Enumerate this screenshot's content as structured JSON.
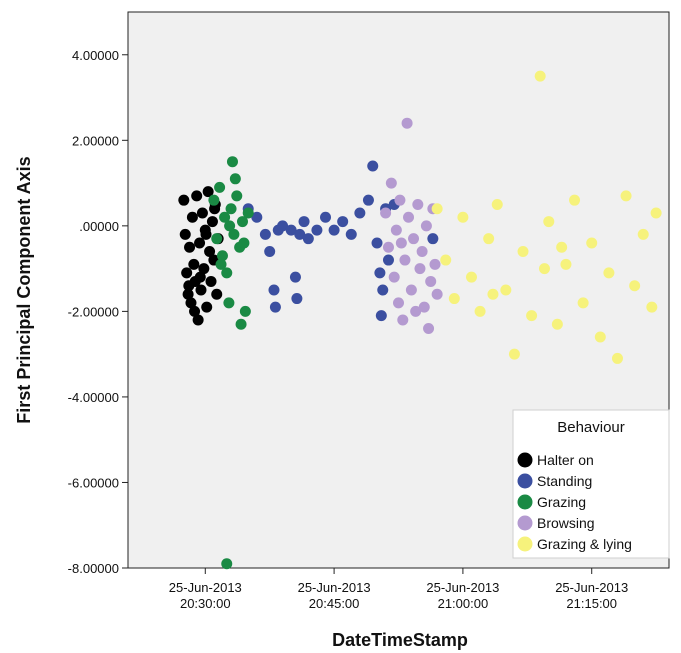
{
  "chart_data": {
    "type": "scatter",
    "xlabel": "DateTimeStamp",
    "ylabel": "First Principal Component Axis",
    "ylim": [
      -8.0,
      5.0
    ],
    "xlim": [
      "2013-06-25 20:21:00",
      "2013-06-25 21:24:00"
    ],
    "grid": false,
    "legend_position": "bottom-right",
    "legend_title": "Behaviour",
    "y_ticks": [
      {
        "value": 4,
        "label": "4.00000"
      },
      {
        "value": 2,
        "label": "2.00000"
      },
      {
        "value": 0,
        "label": ".00000"
      },
      {
        "value": -2,
        "label": "-2.00000"
      },
      {
        "value": -4,
        "label": "-4.00000"
      },
      {
        "value": -6,
        "label": "-6.00000"
      },
      {
        "value": -8,
        "label": "-8.00000"
      }
    ],
    "x_ticks": [
      {
        "value": "2013-06-25 20:30:00",
        "date": "25-Jun-2013",
        "time": "20:30:00"
      },
      {
        "value": "2013-06-25 20:45:00",
        "date": "25-Jun-2013",
        "time": "20:45:00"
      },
      {
        "value": "2013-06-25 21:00:00",
        "date": "25-Jun-2013",
        "time": "21:00:00"
      },
      {
        "value": "2013-06-25 21:15:00",
        "date": "25-Jun-2013",
        "time": "21:15:00"
      }
    ],
    "series": [
      {
        "name": "Halter on",
        "color": "#000000",
        "points": [
          [
            "2013-06-25 20:27:30",
            0.6
          ],
          [
            "2013-06-25 20:27:40",
            -0.2
          ],
          [
            "2013-06-25 20:27:50",
            -1.1
          ],
          [
            "2013-06-25 20:28:00",
            -1.6
          ],
          [
            "2013-06-25 20:28:10",
            -0.5
          ],
          [
            "2013-06-25 20:28:20",
            -1.8
          ],
          [
            "2013-06-25 20:28:30",
            0.2
          ],
          [
            "2013-06-25 20:28:40",
            -0.9
          ],
          [
            "2013-06-25 20:28:50",
            -1.3
          ],
          [
            "2013-06-25 20:29:00",
            0.7
          ],
          [
            "2013-06-25 20:29:10",
            -2.2
          ],
          [
            "2013-06-25 20:29:20",
            -0.4
          ],
          [
            "2013-06-25 20:29:30",
            -1.5
          ],
          [
            "2013-06-25 20:29:40",
            0.3
          ],
          [
            "2013-06-25 20:29:50",
            -1.0
          ],
          [
            "2013-06-25 20:30:00",
            -0.1
          ],
          [
            "2013-06-25 20:30:10",
            -1.9
          ],
          [
            "2013-06-25 20:30:20",
            0.8
          ],
          [
            "2013-06-25 20:30:30",
            -0.6
          ],
          [
            "2013-06-25 20:30:40",
            -1.3
          ],
          [
            "2013-06-25 20:30:50",
            0.1
          ],
          [
            "2013-06-25 20:31:00",
            -0.8
          ],
          [
            "2013-06-25 20:31:10",
            0.5
          ],
          [
            "2013-06-25 20:31:20",
            -1.6
          ],
          [
            "2013-06-25 20:31:30",
            -0.3
          ],
          [
            "2013-06-25 20:28:05",
            -1.4
          ],
          [
            "2013-06-25 20:28:45",
            -2.0
          ],
          [
            "2013-06-25 20:29:25",
            -1.2
          ],
          [
            "2013-06-25 20:30:05",
            -0.2
          ],
          [
            "2013-06-25 20:31:05",
            0.4
          ]
        ]
      },
      {
        "name": "Standing",
        "color": "#3b4fa0",
        "points": [
          [
            "2013-06-25 20:35:00",
            0.4
          ],
          [
            "2013-06-25 20:36:00",
            0.2
          ],
          [
            "2013-06-25 20:37:00",
            -0.2
          ],
          [
            "2013-06-25 20:37:30",
            -0.6
          ],
          [
            "2013-06-25 20:38:00",
            -1.5
          ],
          [
            "2013-06-25 20:38:10",
            -1.9
          ],
          [
            "2013-06-25 20:38:30",
            -0.1
          ],
          [
            "2013-06-25 20:39:00",
            0.0
          ],
          [
            "2013-06-25 20:40:00",
            -0.1
          ],
          [
            "2013-06-25 20:40:30",
            -1.2
          ],
          [
            "2013-06-25 20:40:40",
            -1.7
          ],
          [
            "2013-06-25 20:41:00",
            -0.2
          ],
          [
            "2013-06-25 20:41:30",
            0.1
          ],
          [
            "2013-06-25 20:42:00",
            -0.3
          ],
          [
            "2013-06-25 20:43:00",
            -0.1
          ],
          [
            "2013-06-25 20:44:00",
            0.2
          ],
          [
            "2013-06-25 20:45:00",
            -0.1
          ],
          [
            "2013-06-25 20:46:00",
            0.1
          ],
          [
            "2013-06-25 20:47:00",
            -0.2
          ],
          [
            "2013-06-25 20:48:00",
            0.3
          ],
          [
            "2013-06-25 20:49:00",
            0.6
          ],
          [
            "2013-06-25 20:49:30",
            1.4
          ],
          [
            "2013-06-25 20:50:00",
            -0.4
          ],
          [
            "2013-06-25 20:50:20",
            -1.1
          ],
          [
            "2013-06-25 20:50:30",
            -2.1
          ],
          [
            "2013-06-25 20:50:40",
            -1.5
          ],
          [
            "2013-06-25 20:51:00",
            0.4
          ],
          [
            "2013-06-25 20:51:20",
            -0.8
          ],
          [
            "2013-06-25 20:52:00",
            0.5
          ],
          [
            "2013-06-25 20:56:30",
            -0.3
          ]
        ]
      },
      {
        "name": "Grazing",
        "color": "#1a8a44",
        "points": [
          [
            "2013-06-25 20:31:00",
            0.6
          ],
          [
            "2013-06-25 20:31:20",
            -0.3
          ],
          [
            "2013-06-25 20:31:40",
            0.9
          ],
          [
            "2013-06-25 20:32:00",
            -0.7
          ],
          [
            "2013-06-25 20:32:15",
            0.2
          ],
          [
            "2013-06-25 20:32:30",
            -1.1
          ],
          [
            "2013-06-25 20:32:45",
            -1.8
          ],
          [
            "2013-06-25 20:33:00",
            0.4
          ],
          [
            "2013-06-25 20:33:10",
            1.5
          ],
          [
            "2013-06-25 20:33:20",
            -0.2
          ],
          [
            "2013-06-25 20:33:40",
            0.7
          ],
          [
            "2013-06-25 20:34:00",
            -0.5
          ],
          [
            "2013-06-25 20:34:10",
            -2.3
          ],
          [
            "2013-06-25 20:34:20",
            0.1
          ],
          [
            "2013-06-25 20:34:40",
            -2.0
          ],
          [
            "2013-06-25 20:35:00",
            0.3
          ],
          [
            "2013-06-25 20:33:30",
            1.1
          ],
          [
            "2013-06-25 20:32:50",
            0.0
          ],
          [
            "2013-06-25 20:31:50",
            -0.9
          ],
          [
            "2013-06-25 20:34:30",
            -0.4
          ],
          [
            "2013-06-25 20:32:30",
            -7.9
          ]
        ]
      },
      {
        "name": "Browsing",
        "color": "#b49ad0",
        "points": [
          [
            "2013-06-25 20:51:00",
            0.3
          ],
          [
            "2013-06-25 20:51:20",
            -0.5
          ],
          [
            "2013-06-25 20:51:40",
            1.0
          ],
          [
            "2013-06-25 20:52:00",
            -1.2
          ],
          [
            "2013-06-25 20:52:15",
            -0.1
          ],
          [
            "2013-06-25 20:52:30",
            -1.8
          ],
          [
            "2013-06-25 20:52:40",
            0.6
          ],
          [
            "2013-06-25 20:53:00",
            -2.2
          ],
          [
            "2013-06-25 20:53:15",
            -0.8
          ],
          [
            "2013-06-25 20:53:30",
            2.4
          ],
          [
            "2013-06-25 20:53:40",
            0.2
          ],
          [
            "2013-06-25 20:54:00",
            -1.5
          ],
          [
            "2013-06-25 20:54:15",
            -0.3
          ],
          [
            "2013-06-25 20:54:30",
            -2.0
          ],
          [
            "2013-06-25 20:54:45",
            0.5
          ],
          [
            "2013-06-25 20:55:00",
            -1.0
          ],
          [
            "2013-06-25 20:55:15",
            -0.6
          ],
          [
            "2013-06-25 20:55:30",
            -1.9
          ],
          [
            "2013-06-25 20:55:45",
            0.0
          ],
          [
            "2013-06-25 20:56:00",
            -2.4
          ],
          [
            "2013-06-25 20:56:15",
            -1.3
          ],
          [
            "2013-06-25 20:56:30",
            0.4
          ],
          [
            "2013-06-25 20:56:45",
            -0.9
          ],
          [
            "2013-06-25 20:57:00",
            -1.6
          ],
          [
            "2013-06-25 20:52:50",
            -0.4
          ]
        ]
      },
      {
        "name": "Grazing & lying",
        "color": "#f6f27c",
        "points": [
          [
            "2013-06-25 20:57:00",
            0.4
          ],
          [
            "2013-06-25 20:58:00",
            -0.8
          ],
          [
            "2013-06-25 20:59:00",
            -1.7
          ],
          [
            "2013-06-25 21:00:00",
            0.2
          ],
          [
            "2013-06-25 21:01:00",
            -1.2
          ],
          [
            "2013-06-25 21:02:00",
            -2.0
          ],
          [
            "2013-06-25 21:03:00",
            -0.3
          ],
          [
            "2013-06-25 21:04:00",
            0.5
          ],
          [
            "2013-06-25 21:05:00",
            -1.5
          ],
          [
            "2013-06-25 21:06:00",
            -3.0
          ],
          [
            "2013-06-25 21:07:00",
            -0.6
          ],
          [
            "2013-06-25 21:08:00",
            -2.1
          ],
          [
            "2013-06-25 21:09:00",
            3.5
          ],
          [
            "2013-06-25 21:09:30",
            -1.0
          ],
          [
            "2013-06-25 21:10:00",
            0.1
          ],
          [
            "2013-06-25 21:11:00",
            -2.3
          ],
          [
            "2013-06-25 21:12:00",
            -0.9
          ],
          [
            "2013-06-25 21:13:00",
            0.6
          ],
          [
            "2013-06-25 21:14:00",
            -1.8
          ],
          [
            "2013-06-25 21:15:00",
            -0.4
          ],
          [
            "2013-06-25 21:16:00",
            -2.6
          ],
          [
            "2013-06-25 21:17:00",
            -1.1
          ],
          [
            "2013-06-25 21:18:00",
            -3.1
          ],
          [
            "2013-06-25 21:19:00",
            0.7
          ],
          [
            "2013-06-25 21:20:00",
            -1.4
          ],
          [
            "2013-06-25 21:21:00",
            -0.2
          ],
          [
            "2013-06-25 21:22:00",
            -1.9
          ],
          [
            "2013-06-25 21:22:30",
            0.3
          ],
          [
            "2013-06-25 21:03:30",
            -1.6
          ],
          [
            "2013-06-25 21:11:30",
            -0.5
          ]
        ]
      }
    ]
  }
}
